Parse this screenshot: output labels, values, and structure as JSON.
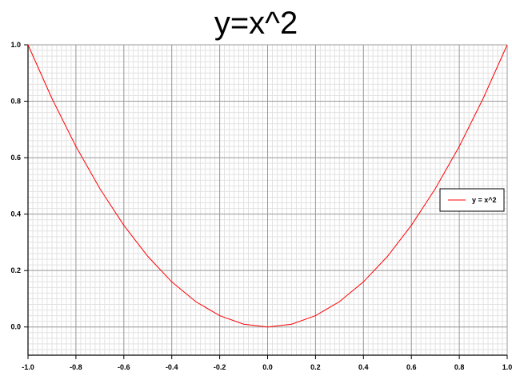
{
  "chart_data": {
    "type": "line",
    "title": "y=x^2",
    "xlabel": "",
    "ylabel": "",
    "xlim": [
      -1.0,
      1.0
    ],
    "ylim": [
      -0.1,
      1.0
    ],
    "x_ticks": [
      "-1.0",
      "-0.8",
      "-0.6",
      "-0.4",
      "-0.2",
      "0.0",
      "0.2",
      "0.4",
      "0.6",
      "0.8",
      "1.0"
    ],
    "y_ticks": [
      "0.0",
      "0.2",
      "0.4",
      "0.6",
      "0.8",
      "1.0"
    ],
    "grid": true,
    "minor_grid": true,
    "legend_position": "right",
    "series": [
      {
        "name": "y = x^2",
        "color": "#ff0000",
        "x": [
          -1.0,
          -0.9,
          -0.8,
          -0.7,
          -0.6,
          -0.5,
          -0.4,
          -0.3,
          -0.2,
          -0.1,
          0.0,
          0.1,
          0.2,
          0.3,
          0.4,
          0.5,
          0.6,
          0.7,
          0.8,
          0.9,
          1.0
        ],
        "y": [
          1.0,
          0.81,
          0.64,
          0.49,
          0.36,
          0.25,
          0.16,
          0.09,
          0.04,
          0.01,
          0.0,
          0.01,
          0.04,
          0.09,
          0.16,
          0.25,
          0.36,
          0.49,
          0.64,
          0.81,
          1.0
        ]
      }
    ]
  }
}
